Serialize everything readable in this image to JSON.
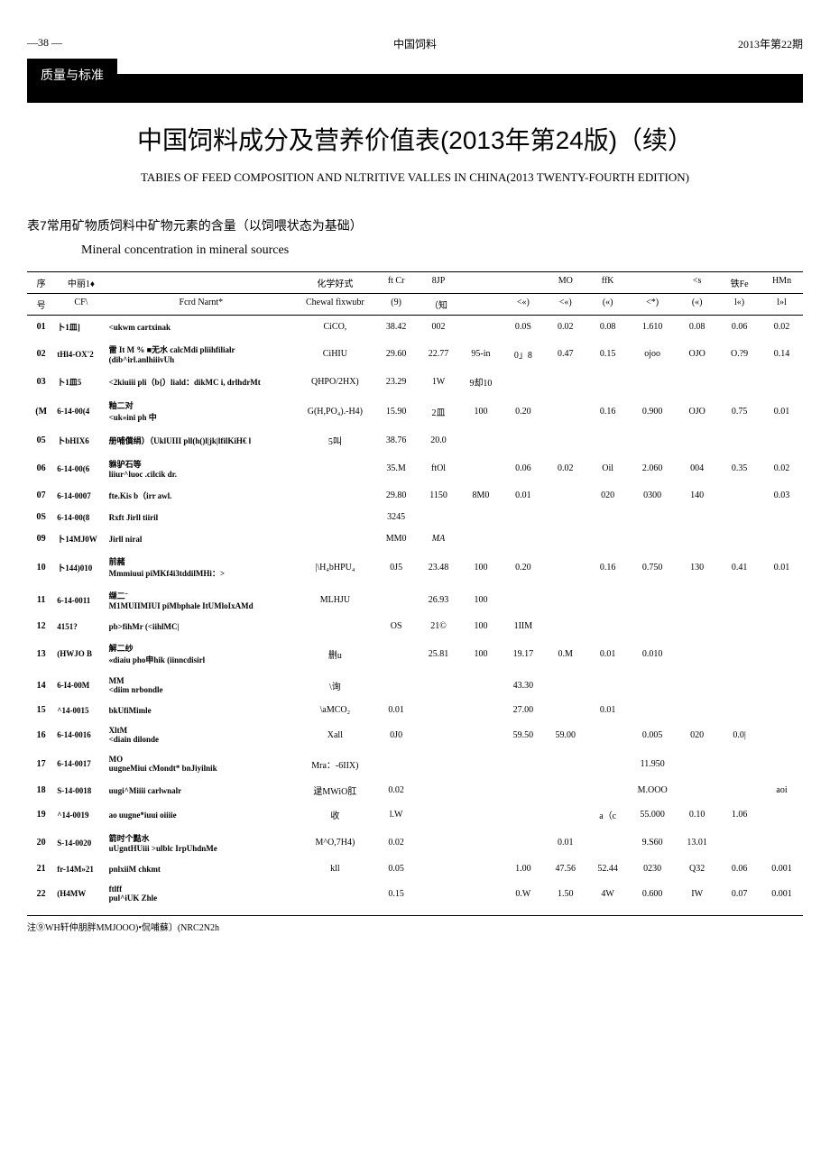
{
  "header": {
    "page_num": "—38 —",
    "journal": "中国饲料",
    "issue": "2013年第22期"
  },
  "section_label": "质量与标准",
  "title_cn": "中国饲料成分及营养价值表(2013年第24版)（续）",
  "title_en": "TABIES OF FEED COMPOSITION AND NLTRITIVE VALLES IN CHINA(2013 TWENTY-FOURTH EDITION)",
  "subtitle_cn": "表7常用矿物质饲料中矿物元素的含量（以饲喂状态为基础）",
  "subtitle_en": "Mineral concentration in mineral sources",
  "columns": {
    "r1": [
      "序",
      "中丽1♦",
      "",
      "化学好式",
      "ft Cr",
      "8JP",
      "",
      "",
      "MO",
      "ffK",
      "",
      "<s",
      "铁Fe",
      "HMn"
    ],
    "r2": [
      "号",
      "CF\\",
      "Fcrd Narnt*",
      "Chewal fixwubr",
      "(9)",
      "（知",
      "",
      "<«)",
      "<«)",
      "(«)",
      "<*)",
      "(«)",
      "l«)",
      "l»l"
    ]
  },
  "rows": [
    {
      "seq": "01",
      "code": "卜1皿]",
      "name": "<ukwm cartxinak",
      "formula": "CiCO,",
      "c5": "38.42",
      "c6": "002",
      "c7": "",
      "c8": "0.0S",
      "c9": "0.02",
      "c10": "0.08",
      "c11": "1.610",
      "c12": "0.08",
      "c13": "0.06",
      "c14": "0.02"
    },
    {
      "seq": "02",
      "code": "tHl4-OX'2",
      "name": "雷  It M % ■无水   calcMdi pliihfilialr (dib^irl.anlhiiivUh",
      "formula": "CiHIU",
      "c5": "29.60",
      "c6": "22.77",
      "c7": "95-in",
      "c8": "0」8",
      "c9": "0.47",
      "c10": "0.15",
      "c11": "ojoo",
      "c12": "OJO",
      "c13": "O.?9",
      "c14": "0.14"
    },
    {
      "seq": "03",
      "code": "卜1皿5",
      "name": "<2kiuiii pli（b{）liald：dikMC i, drlhdrMt",
      "formula": "QHPO/2HX)",
      "c5": "23.29",
      "c6": "1W",
      "c7": "9却10",
      "c8": "",
      "c9": "",
      "c10": "",
      "c11": "",
      "c12": "",
      "c13": "",
      "c14": ""
    },
    {
      "seq": "(M",
      "code": "6-14-00(4",
      "name": "釉二对\n<uk«ini ph 中",
      "formula": "G(H,PO₄).-H4)",
      "c5": "15.90",
      "c6": "2皿",
      "c7": "100",
      "c8": "0.20",
      "c9": "",
      "c10": "0.16",
      "c11": "0.900",
      "c12": "OJO",
      "c13": "0.75",
      "c14": "0.01"
    },
    {
      "seq": "05",
      "code": "卜bHIX6",
      "name": "册哺償绢）（UklUIII pll(h()l|jk|lfilKiH€ l",
      "formula": "5叫",
      "c5": "38.76",
      "c6": "20.0",
      "c7": "",
      "c8": "",
      "c9": "",
      "c10": "",
      "c11": "",
      "c12": "",
      "c13": "",
      "c14": ""
    },
    {
      "seq": "06",
      "code": "6-14-00(6",
      "name": "貅驴石等\nliiur^luoc .cilcik dr.",
      "formula": "",
      "c5": "35.M",
      "c6": "ftOl",
      "c7": "",
      "c8": "0.06",
      "c9": "0.02",
      "c10": "Oil",
      "c11": "2.060",
      "c12": "004",
      "c13": "0.35",
      "c14": "0.02"
    },
    {
      "seq": "07",
      "code": "6-14-0007",
      "name": "fte.Kis b（irr awl.",
      "formula": "",
      "c5": "29.80",
      "c6": "1150",
      "c7": "8M0",
      "c8": "0.01",
      "c9": "",
      "c10": "020",
      "c11": "0300",
      "c12": "140",
      "c13": "",
      "c14": "0.03"
    },
    {
      "seq": "0S",
      "code": "6-14-00(8",
      "name": "Rxft Jirll tiiril",
      "formula": "",
      "c5": "3245",
      "c6": "",
      "c7": "",
      "c8": "",
      "c9": "",
      "c10": "",
      "c11": "",
      "c12": "",
      "c13": "",
      "c14": ""
    },
    {
      "seq": "09",
      "code": "卜14MJ0W",
      "name": "Jirll niral",
      "formula": "",
      "c5": "MM0",
      "c6": "MA",
      "c7": "",
      "c8": "",
      "c9": "",
      "c10": "",
      "c11": "",
      "c12": "",
      "c13": "",
      "c14": ""
    },
    {
      "seq": "10",
      "code": "卜144)010",
      "name": "前赭\nMmmiuui piMKf4i3tddilMHi：>",
      "formula": "|\\H₄bHPU₄",
      "c5": "0J5",
      "c6": "23.48",
      "c7": "100",
      "c8": "0.20",
      "c9": "",
      "c10": "0.16",
      "c11": "0.750",
      "c12": "130",
      "c13": "0.41",
      "c14": "0.01"
    },
    {
      "seq": "11",
      "code": "6-14-0011",
      "name": "缬二ˉ\nM1MUIIMIUI piMbphale ItUMloIxAMd",
      "formula": "MLHJU",
      "c5": "",
      "c6": "26.93",
      "c7": "100",
      "c8": "",
      "c9": "",
      "c10": "",
      "c11": "",
      "c12": "",
      "c13": "",
      "c14": ""
    },
    {
      "seq": "12",
      "code": "4151?",
      "name": "pb>fihMr (<iihlMC|",
      "formula": "",
      "c5": "OS",
      "c6": "21©",
      "c7": "100",
      "c8": "1IIM",
      "c9": "",
      "c10": "",
      "c11": "",
      "c12": "",
      "c13": "",
      "c14": ""
    },
    {
      "seq": "13",
      "code": "(HWJO B",
      "name": "解二纱\n«diaiu pho申hik (iinncdisirl",
      "formula": "删u",
      "c5": "",
      "c6": "25.81",
      "c7": "100",
      "c8": "19.17",
      "c9": "0.M",
      "c10": "0.01",
      "c11": "0.010",
      "c12": "",
      "c13": "",
      "c14": ""
    },
    {
      "seq": "14",
      "code": "6-I4-00M",
      "name": "MM\n<diim nrbondle",
      "formula": "\\询",
      "c5": "",
      "c6": "",
      "c7": "",
      "c8": "43.30",
      "c9": "",
      "c10": "",
      "c11": "",
      "c12": "",
      "c13": "",
      "c14": ""
    },
    {
      "seq": "15",
      "code": "^14-0015",
      "name": "bkUfiMimle",
      "formula": "\\aMCO₂",
      "c5": "0.01",
      "c6": "",
      "c7": "",
      "c8": "27.00",
      "c9": "",
      "c10": "0.01",
      "c11": "",
      "c12": "",
      "c13": "",
      "c14": ""
    },
    {
      "seq": "16",
      "code": "6-14-0016",
      "name": "XltM\n<diain dilonde",
      "formula": "Xall",
      "c5": "0J0",
      "c6": "",
      "c7": "",
      "c8": "59.50",
      "c9": "59.00",
      "c10": "",
      "c11": "0.005",
      "c12": "020",
      "c13": "0.0|",
      "c14": ""
    },
    {
      "seq": "17",
      "code": "6-14-0017",
      "name": "MO\nuugneMiui cMondt* bnJiyilnik",
      "formula": "Mra：-6IIX)",
      "c5": "",
      "c6": "",
      "c7": "",
      "c8": "",
      "c9": "",
      "c10": "",
      "c11": "11.950",
      "c12": "",
      "c13": "",
      "c14": ""
    },
    {
      "seq": "18",
      "code": "S-14-0018",
      "name": "uugi^Miiii carlwnalr",
      "formula": "逯MWiO肛",
      "c5": "0.02",
      "c6": "",
      "c7": "",
      "c8": "",
      "c9": "",
      "c10": "",
      "c11": "M.OOO",
      "c12": "",
      "c13": "",
      "c14": "aoi"
    },
    {
      "seq": "19",
      "code": "^14-0019",
      "name": "ao uugne*iuui oiiiie",
      "formula": "收",
      "c5": "l.W",
      "c6": "",
      "c7": "",
      "c8": "",
      "c9": "",
      "c10": "a（c",
      "c11": "55.000",
      "c12": "0.10",
      "c13": "1.06",
      "c14": ""
    },
    {
      "seq": "20",
      "code": "S-14-0020",
      "name": "箭时个黠水\nuUgntHUiii >ulblc IrpUhdnMe",
      "formula": "M^O,7H4)",
      "c5": "0.02",
      "c6": "",
      "c7": "",
      "c8": "",
      "c9": "0.01",
      "c10": "",
      "c11": "9.S60",
      "c12": "13.01",
      "c13": "",
      "c14": ""
    },
    {
      "seq": "21",
      "code": "fr-14M»21",
      "name": "pnlxiiM chkmt",
      "formula": "kll",
      "c5": "0.05",
      "c6": "",
      "c7": "",
      "c8": "1.00",
      "c9": "47.56",
      "c10": "52.44",
      "c11": "0230",
      "c12": "Q32",
      "c13": "0.06",
      "c14": "0.001"
    },
    {
      "seq": "22",
      "code": "(H4MW",
      "name": "ftlff\npul^iUK Zhle",
      "formula": "",
      "c5": "0.15",
      "c6": "",
      "c7": "",
      "c8": "0.W",
      "c9": "1.50",
      "c10": "4W",
      "c11": "0.600",
      "c12": "IW",
      "c13": "0.07",
      "c14": "0.001"
    }
  ],
  "footnote": "注⑨WH轩仲朋胖MMJOOO)•侃哺蘇〕(NRC2N2h",
  "colwidths": [
    "30px",
    "55px",
    "200px",
    "85px",
    "45px",
    "45px",
    "45px",
    "45px",
    "45px",
    "45px",
    "50px",
    "45px",
    "45px",
    "45px"
  ]
}
